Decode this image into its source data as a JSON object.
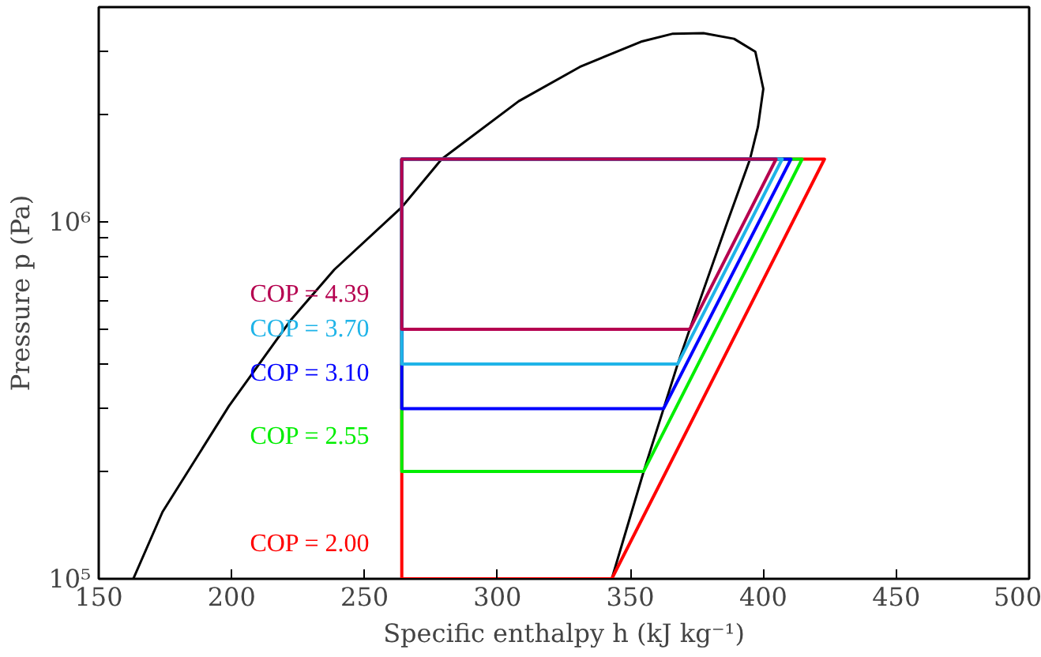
{
  "chart_data": {
    "type": "line",
    "xlabel": "Specific enthalpy h (kJ kg⁻¹)",
    "ylabel": "Pressure p (Pa)",
    "log": "y",
    "grid": false,
    "marker": "none",
    "line_style": "solid",
    "xlim": [
      150,
      500
    ],
    "xticks": [
      150,
      200,
      250,
      300,
      350,
      400,
      450,
      500
    ],
    "ylim": [
      100000,
      4000000
    ],
    "yticks": [
      {
        "value": 100000,
        "label": "10⁵"
      },
      {
        "value": 200000,
        "label": null
      },
      {
        "value": 300000,
        "label": null
      },
      {
        "value": 400000,
        "label": null
      },
      {
        "value": 500000,
        "label": null
      },
      {
        "value": 600000,
        "label": null
      },
      {
        "value": 700000,
        "label": null
      },
      {
        "value": 800000,
        "label": null
      },
      {
        "value": 900000,
        "label": null
      },
      {
        "value": 1000000,
        "label": "10⁶"
      },
      {
        "value": 2000000,
        "label": null
      },
      {
        "value": 3000000,
        "label": null
      },
      {
        "value": 4000000,
        "label": null
      }
    ],
    "series": [
      {
        "color": "#000000",
        "x": [
          163,
          174,
          199,
          222.5,
          238.6,
          264,
          279,
          308,
          331,
          354,
          366,
          377.5,
          389,
          397,
          400,
          398,
          395,
          386.5,
          372.3,
          367.8,
          362.5,
          355,
          343
        ],
        "values": [
          100000,
          154000,
          305000,
          534000,
          735000,
          1100000,
          1500000,
          2180000,
          2720000,
          3200000,
          3370000,
          3380000,
          3260000,
          3000000,
          2360000,
          1850000,
          1500000,
          1000000,
          500000,
          400000,
          300000,
          200000,
          100000
        ]
      },
      {
        "name": "COP = 2.00",
        "color": "#ff0000",
        "x": [
          264,
          343,
          423,
          264,
          264,
          343
        ],
        "values": [
          100000,
          100000,
          1500000,
          1500000,
          100000,
          100000
        ]
      },
      {
        "name": "COP = 2.55",
        "color": "#00ee00",
        "x": [
          264,
          355,
          414.6,
          264,
          264,
          355
        ],
        "values": [
          200000,
          200000,
          1500000,
          1500000,
          200000,
          200000
        ]
      },
      {
        "name": "COP = 3.10",
        "color": "#0000ff",
        "x": [
          264,
          362.5,
          410.4,
          264,
          264,
          362.5
        ],
        "values": [
          300000,
          300000,
          1500000,
          1500000,
          300000,
          300000
        ]
      },
      {
        "name": "COP = 3.70",
        "color": "#1fb4e8",
        "x": [
          264,
          367.8,
          407.1,
          264,
          264,
          367.8
        ],
        "values": [
          400000,
          400000,
          1500000,
          1500000,
          400000,
          400000
        ]
      },
      {
        "name": "COP = 4.39",
        "color": "#b5004f",
        "x": [
          264,
          372.3,
          404.8,
          264,
          264,
          372.3
        ],
        "values": [
          500000,
          500000,
          1500000,
          1500000,
          500000,
          500000
        ]
      }
    ]
  }
}
